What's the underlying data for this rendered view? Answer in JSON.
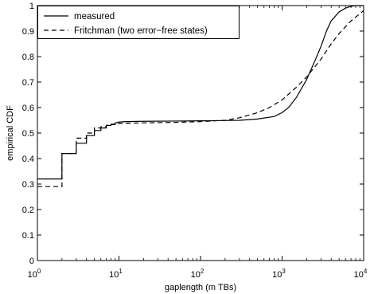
{
  "chart_data": {
    "type": "line",
    "xlabel": "gaplength (m TBs)",
    "ylabel": "empirical CDF",
    "xscale": "log",
    "xlim": [
      1,
      10000
    ],
    "ylim": [
      0,
      1
    ],
    "grid": false,
    "legend_position": "top-left",
    "x_ticks": [
      {
        "value": 1,
        "base": "10",
        "exp": "0"
      },
      {
        "value": 10,
        "base": "10",
        "exp": "1"
      },
      {
        "value": 100,
        "base": "10",
        "exp": "2"
      },
      {
        "value": 1000,
        "base": "10",
        "exp": "3"
      },
      {
        "value": 10000,
        "base": "10",
        "exp": "4"
      }
    ],
    "y_ticks": [
      {
        "value": 0,
        "label": "0"
      },
      {
        "value": 0.1,
        "label": "0.1"
      },
      {
        "value": 0.2,
        "label": "0.2"
      },
      {
        "value": 0.3,
        "label": "0.3"
      },
      {
        "value": 0.4,
        "label": "0.4"
      },
      {
        "value": 0.5,
        "label": "0.5"
      },
      {
        "value": 0.6,
        "label": "0.6"
      },
      {
        "value": 0.7,
        "label": "0.7"
      },
      {
        "value": 0.8,
        "label": "0.8"
      },
      {
        "value": 0.9,
        "label": "0.9"
      },
      {
        "value": 1,
        "label": "1"
      }
    ],
    "series": [
      {
        "name": "measured",
        "style": "solid",
        "color": "#000000",
        "x": [
          1,
          2,
          2,
          3,
          3,
          4,
          4,
          5,
          5,
          6,
          6,
          7,
          7,
          8,
          8,
          9,
          9,
          10,
          12,
          20,
          50,
          100,
          200,
          300,
          500,
          800,
          1000,
          1200,
          1500,
          2000,
          2500,
          3000,
          3500,
          4000,
          5000,
          6000,
          7000,
          8000,
          10000
        ],
        "y": [
          0.32,
          0.32,
          0.42,
          0.42,
          0.46,
          0.46,
          0.49,
          0.49,
          0.51,
          0.51,
          0.52,
          0.52,
          0.53,
          0.53,
          0.535,
          0.535,
          0.54,
          0.543,
          0.545,
          0.546,
          0.547,
          0.548,
          0.549,
          0.55,
          0.555,
          0.565,
          0.58,
          0.6,
          0.64,
          0.71,
          0.78,
          0.84,
          0.9,
          0.94,
          0.975,
          0.99,
          0.997,
          1.0,
          1.0
        ]
      },
      {
        "name": "Fritchman (two error−free states)",
        "style": "dashed",
        "color": "#000000",
        "x": [
          1,
          2,
          2,
          3,
          3,
          4,
          4,
          5,
          5,
          6,
          6,
          7,
          7,
          8,
          8,
          9,
          9,
          10,
          20,
          50,
          100,
          200,
          300,
          500,
          700,
          1000,
          1500,
          2000,
          3000,
          4000,
          5000,
          7000,
          10000
        ],
        "y": [
          0.29,
          0.29,
          0.42,
          0.42,
          0.48,
          0.48,
          0.5,
          0.5,
          0.52,
          0.52,
          0.525,
          0.525,
          0.53,
          0.53,
          0.533,
          0.533,
          0.536,
          0.538,
          0.54,
          0.542,
          0.545,
          0.55,
          0.56,
          0.58,
          0.6,
          0.63,
          0.68,
          0.72,
          0.79,
          0.85,
          0.89,
          0.94,
          0.98
        ]
      }
    ]
  }
}
